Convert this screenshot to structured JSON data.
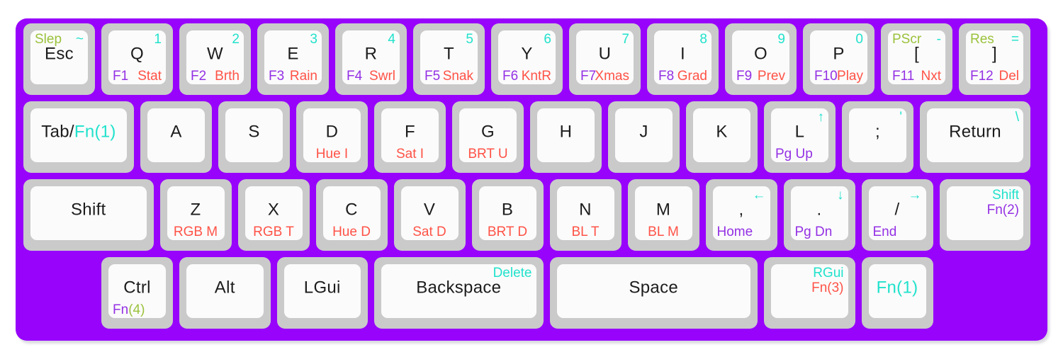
{
  "palette": {
    "case": "#9803fb",
    "key_side": "#cacaca",
    "key_top": "#fbfbfb",
    "black": "#1c1c1c",
    "cyan": "#21e2cc",
    "purple": "#9431e4",
    "red": "#ff5347",
    "green": "#9bc23c"
  },
  "keyboard": {
    "rows": [
      {
        "offset": 0,
        "keys": [
          {
            "name": "esc",
            "w": 1,
            "legends": [
              {
                "pos": "tl",
                "t": "Slep",
                "c": "green"
              },
              {
                "pos": "tr",
                "t": "~",
                "c": "cyan"
              },
              {
                "pos": "c",
                "t": "Esc",
                "c": "black"
              }
            ]
          },
          {
            "name": "q",
            "w": 1,
            "legends": [
              {
                "pos": "tr",
                "t": "1",
                "c": "cyan"
              },
              {
                "pos": "c",
                "t": "Q",
                "c": "black"
              },
              {
                "pos": "bl",
                "t": "F1",
                "c": "purple"
              },
              {
                "pos": "br",
                "t": "Stat",
                "c": "red"
              }
            ]
          },
          {
            "name": "w",
            "w": 1,
            "legends": [
              {
                "pos": "tr",
                "t": "2",
                "c": "cyan"
              },
              {
                "pos": "c",
                "t": "W",
                "c": "black"
              },
              {
                "pos": "bl",
                "t": "F2",
                "c": "purple"
              },
              {
                "pos": "br",
                "t": "Brth",
                "c": "red"
              }
            ]
          },
          {
            "name": "e",
            "w": 1,
            "legends": [
              {
                "pos": "tr",
                "t": "3",
                "c": "cyan"
              },
              {
                "pos": "c",
                "t": "E",
                "c": "black"
              },
              {
                "pos": "bl",
                "t": "F3",
                "c": "purple"
              },
              {
                "pos": "br",
                "t": "Rain",
                "c": "red"
              }
            ]
          },
          {
            "name": "r",
            "w": 1,
            "legends": [
              {
                "pos": "tr",
                "t": "4",
                "c": "cyan"
              },
              {
                "pos": "c",
                "t": "R",
                "c": "black"
              },
              {
                "pos": "bl",
                "t": "F4",
                "c": "purple"
              },
              {
                "pos": "br",
                "t": "Swrl",
                "c": "red"
              }
            ]
          },
          {
            "name": "t",
            "w": 1,
            "legends": [
              {
                "pos": "tr",
                "t": "5",
                "c": "cyan"
              },
              {
                "pos": "c",
                "t": "T",
                "c": "black"
              },
              {
                "pos": "bl",
                "t": "F5",
                "c": "purple"
              },
              {
                "pos": "br",
                "t": "Snak",
                "c": "red"
              }
            ]
          },
          {
            "name": "y",
            "w": 1,
            "legends": [
              {
                "pos": "tr",
                "t": "6",
                "c": "cyan"
              },
              {
                "pos": "c",
                "t": "Y",
                "c": "black"
              },
              {
                "pos": "bl",
                "t": "F6",
                "c": "purple"
              },
              {
                "pos": "br",
                "t": "KntR",
                "c": "red"
              }
            ]
          },
          {
            "name": "u",
            "w": 1,
            "legends": [
              {
                "pos": "tr",
                "t": "7",
                "c": "cyan"
              },
              {
                "pos": "c",
                "t": "U",
                "c": "black"
              },
              {
                "pos": "bl",
                "t": "F7",
                "c": "purple"
              },
              {
                "pos": "br",
                "t": "Xmas",
                "c": "red"
              }
            ]
          },
          {
            "name": "i",
            "w": 1,
            "legends": [
              {
                "pos": "tr",
                "t": "8",
                "c": "cyan"
              },
              {
                "pos": "c",
                "t": "I",
                "c": "black"
              },
              {
                "pos": "bl",
                "t": "F8",
                "c": "purple"
              },
              {
                "pos": "br",
                "t": "Grad",
                "c": "red"
              }
            ]
          },
          {
            "name": "o",
            "w": 1,
            "legends": [
              {
                "pos": "tr",
                "t": "9",
                "c": "cyan"
              },
              {
                "pos": "c",
                "t": "O",
                "c": "black"
              },
              {
                "pos": "bl",
                "t": "F9",
                "c": "purple"
              },
              {
                "pos": "br",
                "t": "Prev",
                "c": "red"
              }
            ]
          },
          {
            "name": "p",
            "w": 1,
            "legends": [
              {
                "pos": "tr",
                "t": "0",
                "c": "cyan"
              },
              {
                "pos": "c",
                "t": "P",
                "c": "black"
              },
              {
                "pos": "bl",
                "t": "F10",
                "c": "purple"
              },
              {
                "pos": "br",
                "t": "Play",
                "c": "red"
              }
            ]
          },
          {
            "name": "left-bracket",
            "w": 1,
            "legends": [
              {
                "pos": "tl",
                "t": "PScr",
                "c": "green"
              },
              {
                "pos": "tr",
                "t": "-",
                "c": "cyan"
              },
              {
                "pos": "c",
                "t": "[",
                "c": "black"
              },
              {
                "pos": "bl",
                "t": "F11",
                "c": "purple"
              },
              {
                "pos": "br",
                "t": "Nxt",
                "c": "red"
              }
            ]
          },
          {
            "name": "right-bracket",
            "w": 1,
            "legends": [
              {
                "pos": "tl",
                "t": "Res",
                "c": "green"
              },
              {
                "pos": "tr",
                "t": "=",
                "c": "cyan"
              },
              {
                "pos": "c",
                "t": "]",
                "c": "black"
              },
              {
                "pos": "bl",
                "t": "F12",
                "c": "purple"
              },
              {
                "pos": "br",
                "t": "Del",
                "c": "red"
              }
            ]
          }
        ]
      },
      {
        "offset": 0,
        "keys": [
          {
            "name": "tab",
            "w": 1.5,
            "legends": [
              {
                "pos": "c",
                "t": [
                  {
                    "t": "Tab/",
                    "c": "black"
                  },
                  {
                    "t": "Fn(1)",
                    "c": "cyan"
                  }
                ]
              }
            ]
          },
          {
            "name": "a",
            "w": 1,
            "legends": [
              {
                "pos": "c",
                "t": "A",
                "c": "black"
              }
            ]
          },
          {
            "name": "s",
            "w": 1,
            "legends": [
              {
                "pos": "c",
                "t": "S",
                "c": "black"
              }
            ]
          },
          {
            "name": "d",
            "w": 1,
            "legends": [
              {
                "pos": "c",
                "t": "D",
                "c": "black"
              },
              {
                "pos": "bc",
                "t": "Hue I",
                "c": "red"
              }
            ]
          },
          {
            "name": "f",
            "w": 1,
            "legends": [
              {
                "pos": "c",
                "t": "F",
                "c": "black"
              },
              {
                "pos": "bc",
                "t": "Sat I",
                "c": "red"
              }
            ]
          },
          {
            "name": "g",
            "w": 1,
            "legends": [
              {
                "pos": "c",
                "t": "G",
                "c": "black"
              },
              {
                "pos": "bc",
                "t": "BRT U",
                "c": "red"
              }
            ]
          },
          {
            "name": "h",
            "w": 1,
            "legends": [
              {
                "pos": "c",
                "t": "H",
                "c": "black"
              }
            ]
          },
          {
            "name": "j",
            "w": 1,
            "legends": [
              {
                "pos": "c",
                "t": "J",
                "c": "black"
              }
            ]
          },
          {
            "name": "k",
            "w": 1,
            "legends": [
              {
                "pos": "c",
                "t": "K",
                "c": "black"
              }
            ]
          },
          {
            "name": "l",
            "w": 1,
            "legends": [
              {
                "pos": "tr",
                "t": "↑",
                "c": "cyan"
              },
              {
                "pos": "c",
                "t": "L",
                "c": "black"
              },
              {
                "pos": "bl",
                "t": "Pg Up",
                "c": "purple"
              }
            ]
          },
          {
            "name": "semicolon",
            "w": 1,
            "legends": [
              {
                "pos": "tr",
                "t": "'",
                "c": "cyan"
              },
              {
                "pos": "c",
                "t": ";",
                "c": "black"
              }
            ]
          },
          {
            "name": "return",
            "w": 1.5,
            "legends": [
              {
                "pos": "tr",
                "t": "\\",
                "c": "cyan"
              },
              {
                "pos": "c",
                "t": "Return",
                "c": "black"
              }
            ]
          }
        ]
      },
      {
        "offset": 0,
        "keys": [
          {
            "name": "left-shift",
            "w": 1.75,
            "legends": [
              {
                "pos": "c",
                "t": "Shift",
                "c": "black"
              }
            ]
          },
          {
            "name": "z",
            "w": 1,
            "legends": [
              {
                "pos": "c",
                "t": "Z",
                "c": "black"
              },
              {
                "pos": "bc",
                "t": "RGB M",
                "c": "red"
              }
            ]
          },
          {
            "name": "x",
            "w": 1,
            "legends": [
              {
                "pos": "c",
                "t": "X",
                "c": "black"
              },
              {
                "pos": "bc",
                "t": "RGB T",
                "c": "red"
              }
            ]
          },
          {
            "name": "c",
            "w": 1,
            "legends": [
              {
                "pos": "c",
                "t": "C",
                "c": "black"
              },
              {
                "pos": "bc",
                "t": "Hue D",
                "c": "red"
              }
            ]
          },
          {
            "name": "v",
            "w": 1,
            "legends": [
              {
                "pos": "c",
                "t": "V",
                "c": "black"
              },
              {
                "pos": "bc",
                "t": "Sat D",
                "c": "red"
              }
            ]
          },
          {
            "name": "b",
            "w": 1,
            "legends": [
              {
                "pos": "c",
                "t": "B",
                "c": "black"
              },
              {
                "pos": "bc",
                "t": "BRT D",
                "c": "red"
              }
            ]
          },
          {
            "name": "n",
            "w": 1,
            "legends": [
              {
                "pos": "c",
                "t": "N",
                "c": "black"
              },
              {
                "pos": "bc",
                "t": "BL T",
                "c": "red"
              }
            ]
          },
          {
            "name": "m",
            "w": 1,
            "legends": [
              {
                "pos": "c",
                "t": "M",
                "c": "black"
              },
              {
                "pos": "bc",
                "t": "BL M",
                "c": "red"
              }
            ]
          },
          {
            "name": "comma",
            "w": 1,
            "legends": [
              {
                "pos": "tr",
                "t": "←",
                "c": "cyan"
              },
              {
                "pos": "c",
                "t": ",",
                "c": "black"
              },
              {
                "pos": "bl",
                "t": "Home",
                "c": "purple"
              }
            ]
          },
          {
            "name": "period",
            "w": 1,
            "legends": [
              {
                "pos": "tr",
                "t": "↓",
                "c": "cyan"
              },
              {
                "pos": "c",
                "t": ".",
                "c": "black"
              },
              {
                "pos": "bl",
                "t": "Pg Dn",
                "c": "purple"
              }
            ]
          },
          {
            "name": "slash",
            "w": 1,
            "legends": [
              {
                "pos": "tr",
                "t": "→",
                "c": "cyan"
              },
              {
                "pos": "c",
                "t": "/",
                "c": "black"
              },
              {
                "pos": "bl",
                "t": "End",
                "c": "purple"
              }
            ]
          },
          {
            "name": "right-shift",
            "w": 1.25,
            "legends": [
              {
                "pos": "tr",
                "t": "Shift",
                "c": "cyan"
              },
              {
                "pos": "tr2",
                "t": "Fn(2)",
                "c": "purple"
              }
            ]
          }
        ]
      },
      {
        "offset": 1,
        "keys": [
          {
            "name": "ctrl",
            "w": 1,
            "legends": [
              {
                "pos": "c",
                "t": "Ctrl",
                "c": "black"
              },
              {
                "pos": "bl",
                "t": [
                  {
                    "t": "Fn",
                    "c": "purple"
                  },
                  {
                    "t": "(4)",
                    "c": "green"
                  }
                ]
              }
            ]
          },
          {
            "name": "alt",
            "w": 1.25,
            "legends": [
              {
                "pos": "c",
                "t": "Alt",
                "c": "black"
              }
            ]
          },
          {
            "name": "lgui",
            "w": 1.25,
            "legends": [
              {
                "pos": "c",
                "t": "LGui",
                "c": "black"
              }
            ]
          },
          {
            "name": "backspace",
            "w": 2.25,
            "legends": [
              {
                "pos": "tr",
                "t": "Delete",
                "c": "cyan"
              },
              {
                "pos": "c",
                "t": "Backspace",
                "c": "black"
              }
            ]
          },
          {
            "name": "space",
            "w": 2.75,
            "legends": [
              {
                "pos": "c",
                "t": "Space",
                "c": "black"
              }
            ]
          },
          {
            "name": "fn3",
            "w": 1.25,
            "legends": [
              {
                "pos": "tr",
                "t": "RGui",
                "c": "cyan"
              },
              {
                "pos": "tr2",
                "t": "Fn(3)",
                "c": "red"
              }
            ]
          },
          {
            "name": "fn1",
            "w": 1,
            "legends": [
              {
                "pos": "c",
                "t": "Fn(1)",
                "c": "cyan"
              }
            ]
          }
        ]
      }
    ]
  }
}
